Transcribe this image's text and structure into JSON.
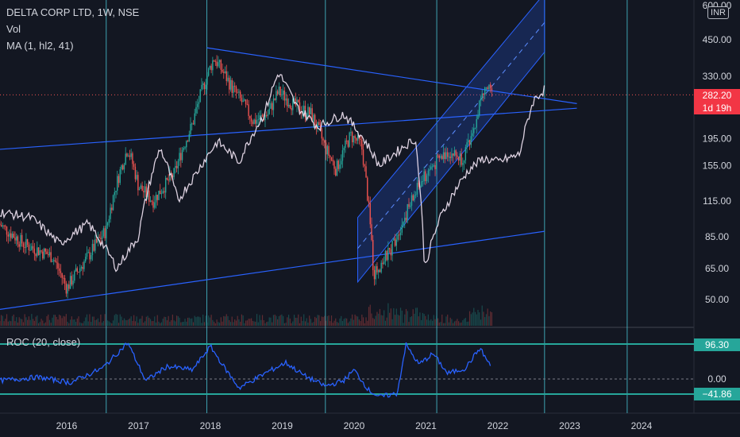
{
  "legend": {
    "symbol": "DELTA CORP LTD, 1W, NSE",
    "vol": "Vol",
    "ma": "MA (1, hl2, 41)",
    "roc": "ROC (20, close)"
  },
  "currency": "INR",
  "price_tag": {
    "value": "282.20",
    "countdown": "1d 19h"
  },
  "roc_tags": {
    "upper": "96.30",
    "lower": "−41.86"
  },
  "colors": {
    "background": "#131722",
    "up": "#26a69a",
    "down": "#ef5350",
    "ma_line": "#f3e5f5",
    "trend_line": "#2962ff",
    "channel_fill": "#2962ff",
    "vertical_line": "#4dd0e1",
    "roc_line": "#2962ff",
    "roc_level": "#26a69a",
    "price_tag_bg": "#f23645"
  },
  "chart_data": {
    "type": "candlestick",
    "log_scale": true,
    "price_axis": {
      "ticks": [
        50,
        65,
        85,
        115,
        155,
        195,
        330,
        450,
        600
      ],
      "tick_labels": [
        "50.00",
        "65.00",
        "85.00",
        "115.00",
        "155.00",
        "195.00",
        "330.00",
        "450.00",
        "600.00"
      ]
    },
    "time_axis": {
      "tick_labels": [
        "2016",
        "2017",
        "2018",
        "2019",
        "2020",
        "2021",
        "2022",
        "2023",
        "2024"
      ]
    },
    "price_key_points": [
      {
        "t": 2015.05,
        "p": 95
      },
      {
        "t": 2015.4,
        "p": 80
      },
      {
        "t": 2015.8,
        "p": 72
      },
      {
        "t": 2016.0,
        "p": 55
      },
      {
        "t": 2016.3,
        "p": 72
      },
      {
        "t": 2016.55,
        "p": 90
      },
      {
        "t": 2016.85,
        "p": 180
      },
      {
        "t": 2017.0,
        "p": 130
      },
      {
        "t": 2017.2,
        "p": 115
      },
      {
        "t": 2017.5,
        "p": 145
      },
      {
        "t": 2017.75,
        "p": 220
      },
      {
        "t": 2017.95,
        "p": 330
      },
      {
        "t": 2018.05,
        "p": 385
      },
      {
        "t": 2018.3,
        "p": 300
      },
      {
        "t": 2018.6,
        "p": 225
      },
      {
        "t": 2018.8,
        "p": 240
      },
      {
        "t": 2018.95,
        "p": 290
      },
      {
        "t": 2019.15,
        "p": 260
      },
      {
        "t": 2019.4,
        "p": 240
      },
      {
        "t": 2019.6,
        "p": 180
      },
      {
        "t": 2019.75,
        "p": 150
      },
      {
        "t": 2019.95,
        "p": 200
      },
      {
        "t": 2020.1,
        "p": 185
      },
      {
        "t": 2020.2,
        "p": 110
      },
      {
        "t": 2020.27,
        "p": 62
      },
      {
        "t": 2020.5,
        "p": 75
      },
      {
        "t": 2020.7,
        "p": 100
      },
      {
        "t": 2020.9,
        "p": 130
      },
      {
        "t": 2021.05,
        "p": 150
      },
      {
        "t": 2021.3,
        "p": 175
      },
      {
        "t": 2021.5,
        "p": 165
      },
      {
        "t": 2021.65,
        "p": 195
      },
      {
        "t": 2021.75,
        "p": 265
      },
      {
        "t": 2021.85,
        "p": 300
      },
      {
        "t": 2021.92,
        "p": 282.2
      }
    ],
    "ma_key_points": [
      {
        "t": 2015.05,
        "p": 105
      },
      {
        "t": 2015.5,
        "p": 100
      },
      {
        "t": 2015.9,
        "p": 80
      },
      {
        "t": 2016.3,
        "p": 95
      },
      {
        "t": 2016.7,
        "p": 65
      },
      {
        "t": 2017.0,
        "p": 85
      },
      {
        "t": 2017.3,
        "p": 180
      },
      {
        "t": 2017.55,
        "p": 115
      },
      {
        "t": 2017.8,
        "p": 145
      },
      {
        "t": 2018.1,
        "p": 190
      },
      {
        "t": 2018.4,
        "p": 160
      },
      {
        "t": 2018.75,
        "p": 240
      },
      {
        "t": 2018.95,
        "p": 340
      },
      {
        "t": 2019.2,
        "p": 255
      },
      {
        "t": 2019.5,
        "p": 215
      },
      {
        "t": 2019.85,
        "p": 240
      },
      {
        "t": 2020.1,
        "p": 200
      },
      {
        "t": 2020.35,
        "p": 155
      },
      {
        "t": 2020.6,
        "p": 175
      },
      {
        "t": 2020.85,
        "p": 195
      },
      {
        "t": 2020.98,
        "p": 65
      },
      {
        "t": 2021.2,
        "p": 100
      },
      {
        "t": 2021.4,
        "p": 125
      },
      {
        "t": 2021.6,
        "p": 150
      },
      {
        "t": 2021.8,
        "p": 165
      },
      {
        "t": 2022.0,
        "p": 160
      },
      {
        "t": 2022.3,
        "p": 170
      },
      {
        "t": 2022.5,
        "p": 270
      },
      {
        "t": 2022.65,
        "p": 295
      }
    ],
    "roc_key_points": [
      {
        "t": 2015.05,
        "v": -5
      },
      {
        "t": 2015.6,
        "v": 5
      },
      {
        "t": 2016.05,
        "v": -10
      },
      {
        "t": 2016.5,
        "v": 30
      },
      {
        "t": 2016.85,
        "v": 100
      },
      {
        "t": 2017.1,
        "v": -5
      },
      {
        "t": 2017.4,
        "v": 35
      },
      {
        "t": 2017.75,
        "v": 25
      },
      {
        "t": 2018.0,
        "v": 90
      },
      {
        "t": 2018.2,
        "v": 30
      },
      {
        "t": 2018.4,
        "v": -25
      },
      {
        "t": 2018.8,
        "v": 20
      },
      {
        "t": 2019.05,
        "v": 45
      },
      {
        "t": 2019.3,
        "v": 10
      },
      {
        "t": 2019.6,
        "v": -20
      },
      {
        "t": 2019.85,
        "v": -5
      },
      {
        "t": 2020.0,
        "v": 25
      },
      {
        "t": 2020.2,
        "v": -30
      },
      {
        "t": 2020.35,
        "v": -50
      },
      {
        "t": 2020.6,
        "v": -40
      },
      {
        "t": 2020.72,
        "v": 95
      },
      {
        "t": 2020.9,
        "v": 40
      },
      {
        "t": 2021.1,
        "v": 70
      },
      {
        "t": 2021.3,
        "v": 15
      },
      {
        "t": 2021.55,
        "v": 30
      },
      {
        "t": 2021.75,
        "v": 85
      },
      {
        "t": 2021.9,
        "v": 35
      }
    ],
    "roc_levels": {
      "upper": 96.3,
      "lower": -41.86,
      "zero": 0
    }
  }
}
